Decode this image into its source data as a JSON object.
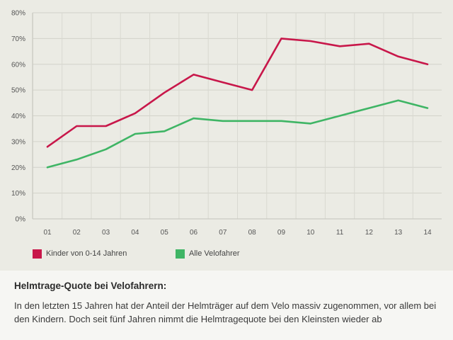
{
  "chart_data": {
    "type": "line",
    "categories": [
      "01",
      "02",
      "03",
      "04",
      "05",
      "06",
      "07",
      "08",
      "09",
      "10",
      "11",
      "12",
      "13",
      "14"
    ],
    "series": [
      {
        "name": "Kinder von 0-14 Jahren",
        "color": "#c8174a",
        "values": [
          28,
          36,
          36,
          41,
          49,
          56,
          53,
          50,
          70,
          69,
          67,
          68,
          63,
          60
        ]
      },
      {
        "name": "Alle Velofahrer",
        "color": "#3fb565",
        "values": [
          20,
          23,
          27,
          33,
          34,
          39,
          38,
          38,
          38,
          37,
          40,
          43,
          46,
          43
        ]
      }
    ],
    "y_ticks": [
      "0%",
      "10%",
      "20%",
      "30%",
      "40%",
      "50%",
      "60%",
      "70%",
      "80%"
    ],
    "ylim": [
      0,
      80
    ],
    "grid": true,
    "legend_position": "bottom-left"
  },
  "caption": {
    "title": "Helmtrage-Quote bei Velofahrern:",
    "text": "In den letzten 15 Jahren hat der Anteil der Helmträger auf dem Velo massiv zugenommen, vor allem bei den Kindern. Doch seit fünf Jahren nimmt die Helmtragequote bei den Kleinsten wieder ab"
  }
}
